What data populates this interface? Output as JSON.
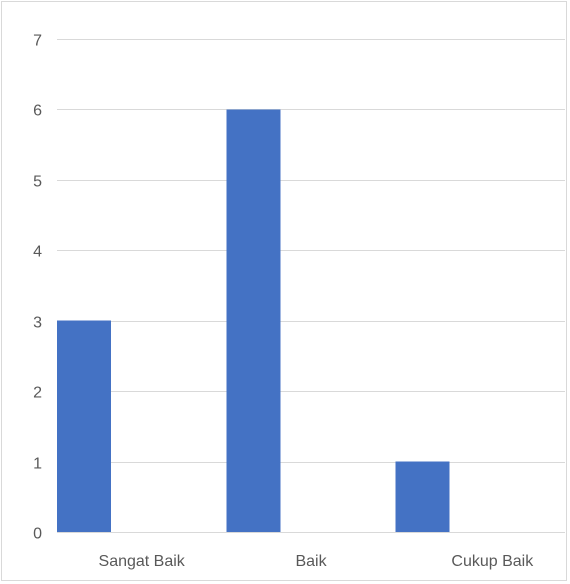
{
  "chart_data": {
    "type": "bar",
    "title": "",
    "xlabel": "",
    "ylabel": "",
    "categories": [
      "Sangat Baik",
      "Baik",
      "Cukup Baik"
    ],
    "values": [
      3,
      6,
      1
    ],
    "ylim": [
      0,
      7
    ],
    "yticks": [
      "0",
      "1",
      "2",
      "3",
      "4",
      "5",
      "6",
      "7"
    ],
    "grid": true,
    "legend": "none",
    "bar_color": "#4472c4",
    "grid_color": "#d9d9d9",
    "label_color": "#595959"
  }
}
